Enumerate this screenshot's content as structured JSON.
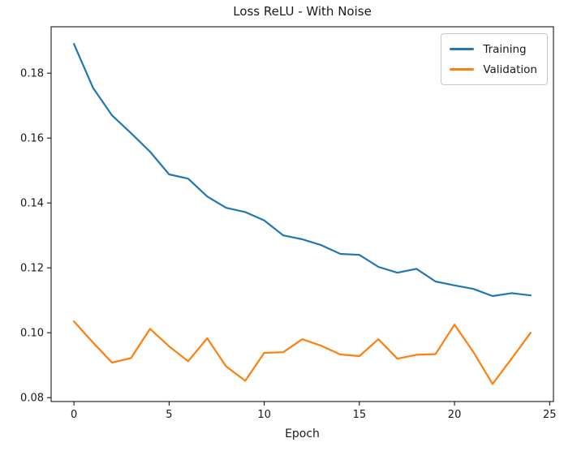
{
  "chart_data": {
    "type": "line",
    "title": "Loss ReLU - With Noise",
    "xlabel": "Epoch",
    "ylabel": "",
    "x": [
      0,
      1,
      2,
      3,
      4,
      5,
      6,
      7,
      8,
      9,
      10,
      11,
      12,
      13,
      14,
      15,
      16,
      17,
      18,
      19,
      20,
      21,
      22,
      23,
      24
    ],
    "series": [
      {
        "name": "Training",
        "color": "#1f77b4",
        "values": [
          0.189,
          0.1755,
          0.167,
          0.1615,
          0.1558,
          0.1488,
          0.1475,
          0.142,
          0.1385,
          0.1372,
          0.1346,
          0.13,
          0.1288,
          0.127,
          0.1243,
          0.124,
          0.1203,
          0.1185,
          0.1197,
          0.1158,
          0.1146,
          0.1135,
          0.1113,
          0.1122,
          0.1115
        ]
      },
      {
        "name": "Validation",
        "color": "#ff7f0e",
        "values": [
          0.1035,
          0.097,
          0.0908,
          0.0922,
          0.1012,
          0.0958,
          0.0912,
          0.0983,
          0.0896,
          0.0852,
          0.0938,
          0.094,
          0.098,
          0.096,
          0.0933,
          0.0928,
          0.098,
          0.092,
          0.0932,
          0.0934,
          0.1025,
          0.094,
          0.0842,
          0.092,
          0.1
        ]
      }
    ],
    "xticks": [
      0,
      5,
      10,
      15,
      20,
      25
    ],
    "yticks": [
      0.08,
      0.1,
      0.12,
      0.14,
      0.16,
      0.18
    ],
    "xlim": [
      -1.2,
      25.2
    ],
    "ylim": [
      0.0788,
      0.1943
    ],
    "grid": false,
    "legend": {
      "position": "upper right",
      "entries": [
        "Training",
        "Validation"
      ]
    },
    "axis_color": "#000000",
    "text_color": "#1a1a1a"
  }
}
